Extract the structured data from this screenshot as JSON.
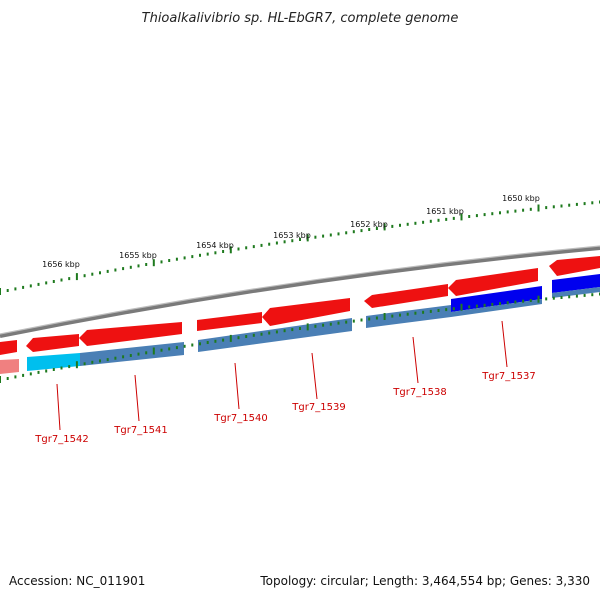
{
  "title": "Thioalkalivibrio sp. HL-EbGR7, complete genome",
  "footer": {
    "accession": "Accession: NC_011901",
    "summary": "Topology: circular; Length: 3,464,554 bp; Genes: 3,330"
  },
  "colors": {
    "backbone": "#8a8a8a",
    "forward_gene": "#ee1111",
    "reverse_gene": "#4a7fb5",
    "selected_blue": "#0000ee",
    "selected_cyan": "#00bfee",
    "pink_gene": "#f08080",
    "tick_marks": "#1e7a1e",
    "label_red": "#cc0000"
  },
  "scale_labels": [
    "1656 kbp",
    "1655 kbp",
    "1654 kbp",
    "1653 kbp",
    "1652 kbp",
    "1651 kbp",
    "1650 kbp"
  ],
  "gene_labels": [
    "Tgr7_1542",
    "Tgr7_1541",
    "Tgr7_1540",
    "Tgr7_1539",
    "Tgr7_1538",
    "Tgr7_1537"
  ]
}
